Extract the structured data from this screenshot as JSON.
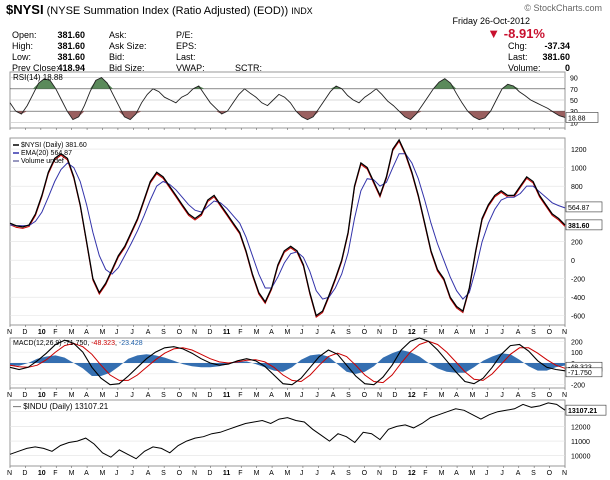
{
  "header": {
    "symbol": "$NYSI",
    "name": "(NYSE Summation Index (Ratio Adjusted) (EOD))",
    "exchange": "INDX",
    "watermark": "© StockCharts.com",
    "date": "Friday  26-Oct-2012",
    "change_pct": "-8.91%",
    "quote_left": [
      {
        "label": "Open:",
        "value": "381.60"
      },
      {
        "label": "High:",
        "value": "381.60"
      },
      {
        "label": "Low:",
        "value": "381.60"
      },
      {
        "label": "Prev Close:",
        "value": "418.94"
      }
    ],
    "quote_mid": [
      "Ask:",
      "Ask Size:",
      "Bid:",
      "Bid Size:"
    ],
    "quote_mid2": [
      "P/E:",
      "EPS:",
      "Last:",
      "VWAP:"
    ],
    "sctr_label": "SCTR:",
    "quote_right": [
      {
        "label": "Chg:",
        "value": "-37.34"
      },
      {
        "label": "Last:",
        "value": "381.60"
      },
      {
        "label": "Volume:",
        "value": "0"
      }
    ]
  },
  "colors": {
    "price": "#000000",
    "ema": "#3333aa",
    "macd_signal": "#cc0000",
    "hist": "#1f5fa8",
    "rsi_up": "#5b8a5b",
    "rsi_down": "#9a6060"
  },
  "chart_data": [
    {
      "type": "line",
      "panel": "rsi",
      "label": "RSI(14) 18.88",
      "levels": [
        90,
        70,
        50,
        30,
        10
      ],
      "last_label": "18.88",
      "values": [
        45,
        30,
        25,
        40,
        60,
        80,
        88,
        85,
        70,
        50,
        30,
        15,
        20,
        40,
        65,
        85,
        90,
        80,
        60,
        40,
        20,
        15,
        25,
        45,
        60,
        70,
        65,
        55,
        50,
        45,
        55,
        60,
        70,
        75,
        60,
        45,
        35,
        25,
        30,
        45,
        60,
        70,
        62,
        55,
        45,
        40,
        50,
        60,
        55,
        45,
        30,
        20,
        15,
        20,
        35,
        50,
        65,
        75,
        70,
        58,
        50,
        45,
        55,
        62,
        70,
        60,
        48,
        40,
        30,
        20,
        15,
        25,
        40,
        55,
        70,
        82,
        88,
        80,
        62,
        45,
        30,
        20,
        15,
        18,
        30,
        50,
        70,
        78,
        75,
        65,
        58,
        50,
        45,
        40,
        35,
        28,
        22,
        18.88
      ]
    },
    {
      "type": "line",
      "panel": "main",
      "series": [
        {
          "name": "$NYSI (Daily) 381.60"
        },
        {
          "name": "EMA(20) 564.87"
        },
        {
          "name": "Volume undef"
        }
      ],
      "yticks": [
        1200,
        1000,
        800,
        600,
        400,
        200,
        0,
        -200,
        -400,
        -600
      ],
      "ylim": [
        -700,
        1320
      ],
      "last_labels": [
        "564.87",
        "381.60"
      ],
      "price": [
        400,
        370,
        360,
        380,
        500,
        700,
        950,
        1100,
        1150,
        1100,
        900,
        600,
        200,
        -200,
        -350,
        -250,
        -100,
        50,
        150,
        300,
        450,
        650,
        850,
        950,
        900,
        800,
        700,
        600,
        500,
        450,
        500,
        650,
        700,
        600,
        500,
        400,
        300,
        100,
        -150,
        -350,
        -450,
        -300,
        -50,
        100,
        150,
        100,
        -50,
        -350,
        -600,
        -550,
        -380,
        -200,
        0,
        300,
        800,
        1050,
        1000,
        850,
        700,
        900,
        1200,
        1300,
        1150,
        950,
        700,
        400,
        100,
        -100,
        -200,
        -400,
        -500,
        -550,
        -300,
        100,
        450,
        600,
        700,
        750,
        700,
        700,
        800,
        900,
        850,
        700,
        600,
        500,
        450,
        381.6
      ],
      "ema": [
        380,
        375,
        372,
        375,
        420,
        520,
        680,
        850,
        980,
        1050,
        1000,
        850,
        600,
        300,
        50,
        -100,
        -150,
        -80,
        50,
        180,
        320,
        480,
        650,
        800,
        850,
        820,
        760,
        680,
        600,
        540,
        520,
        580,
        640,
        620,
        560,
        480,
        400,
        250,
        50,
        -150,
        -300,
        -300,
        -180,
        -30,
        70,
        90,
        30,
        -120,
        -330,
        -420,
        -400,
        -300,
        -150,
        80,
        450,
        750,
        880,
        870,
        800,
        840,
        1000,
        1150,
        1150,
        1050,
        880,
        650,
        400,
        180,
        0,
        -180,
        -330,
        -420,
        -350,
        -100,
        200,
        400,
        550,
        650,
        680,
        680,
        720,
        800,
        800,
        740,
        680,
        620,
        590,
        564.87
      ]
    },
    {
      "type": "line",
      "panel": "macd",
      "label": "MACD(12,26,9) -71.750, -48.323, -23.428",
      "series": [
        {
          "name": "-71.750"
        },
        {
          "name": "-48.323"
        },
        {
          "name": "-23.428"
        }
      ],
      "yticks": [
        200,
        100,
        0,
        -100,
        -200
      ],
      "ylim": [
        -230,
        230
      ],
      "last_labels": [
        "-48.323",
        "-71.750"
      ],
      "macd": [
        -40,
        -60,
        -40,
        20,
        90,
        170,
        210,
        180,
        100,
        -40,
        -140,
        -200,
        -190,
        -120,
        -40,
        40,
        100,
        140,
        150,
        130,
        90,
        40,
        0,
        -20,
        -10,
        20,
        40,
        20,
        -30,
        -110,
        -190,
        -200,
        -140,
        -40,
        60,
        120,
        80,
        -20,
        -120,
        -190,
        -200,
        -130,
        -20,
        120,
        200,
        230,
        200,
        120,
        20,
        -80,
        -170,
        -190,
        -140,
        -40,
        80,
        160,
        170,
        110,
        20,
        -40,
        -60,
        -71.75
      ],
      "signal": [
        -20,
        -35,
        -40,
        -20,
        30,
        100,
        160,
        180,
        150,
        80,
        -20,
        -110,
        -160,
        -160,
        -110,
        -40,
        30,
        90,
        130,
        140,
        120,
        80,
        40,
        10,
        0,
        10,
        25,
        30,
        10,
        -40,
        -110,
        -160,
        -170,
        -110,
        -20,
        60,
        90,
        60,
        -20,
        -110,
        -170,
        -180,
        -110,
        0,
        100,
        170,
        200,
        170,
        100,
        10,
        -80,
        -150,
        -160,
        -100,
        -10,
        80,
        140,
        140,
        90,
        30,
        -20,
        -48.323
      ],
      "hist": [
        -20,
        -25,
        0,
        40,
        60,
        70,
        50,
        0,
        -50,
        -120,
        -120,
        -90,
        -30,
        40,
        70,
        80,
        70,
        50,
        20,
        -10,
        -30,
        -40,
        -40,
        -30,
        -10,
        10,
        15,
        -10,
        -40,
        -70,
        -80,
        -40,
        30,
        70,
        80,
        60,
        -10,
        -80,
        -100,
        -80,
        -30,
        50,
        90,
        120,
        100,
        60,
        0,
        -50,
        -80,
        -90,
        -90,
        -40,
        20,
        60,
        90,
        80,
        30,
        -30,
        -70,
        -70,
        -40,
        -23.428
      ]
    },
    {
      "type": "line",
      "panel": "indu",
      "label": "$INDU (Daily) 13107.21",
      "series": [
        {
          "name": "$INDU (Daily) 13107.21"
        }
      ],
      "yticks": [
        13000,
        12000,
        11000,
        10000
      ],
      "ylim": [
        9300,
        13800
      ],
      "last_label": "13107.21",
      "values": [
        10100,
        10300,
        10500,
        10600,
        10500,
        10300,
        10700,
        10900,
        11000,
        11200,
        10800,
        10200,
        9900,
        10400,
        10100,
        9800,
        10300,
        10600,
        10500,
        10200,
        10700,
        11000,
        11200,
        11300,
        11500,
        11600,
        11800,
        12000,
        12200,
        12300,
        12400,
        12200,
        12500,
        12600,
        12400,
        12300,
        11800,
        11400,
        11000,
        11500,
        11300,
        10900,
        11600,
        11500,
        11100,
        11800,
        12000,
        12100,
        11900,
        12200,
        12600,
        12800,
        13000,
        13200,
        13100,
        12800,
        12500,
        12800,
        13000,
        13100,
        13200,
        13500,
        13300,
        13400,
        13600,
        13500,
        13107.21
      ]
    }
  ],
  "x_axis": [
    "N",
    "D",
    "10",
    "F",
    "M",
    "A",
    "M",
    "J",
    "J",
    "A",
    "S",
    "O",
    "N",
    "D",
    "11",
    "F",
    "M",
    "A",
    "M",
    "J",
    "J",
    "A",
    "S",
    "O",
    "N",
    "D",
    "12",
    "F",
    "M",
    "A",
    "M",
    "J",
    "J",
    "A",
    "S",
    "O",
    "N"
  ]
}
